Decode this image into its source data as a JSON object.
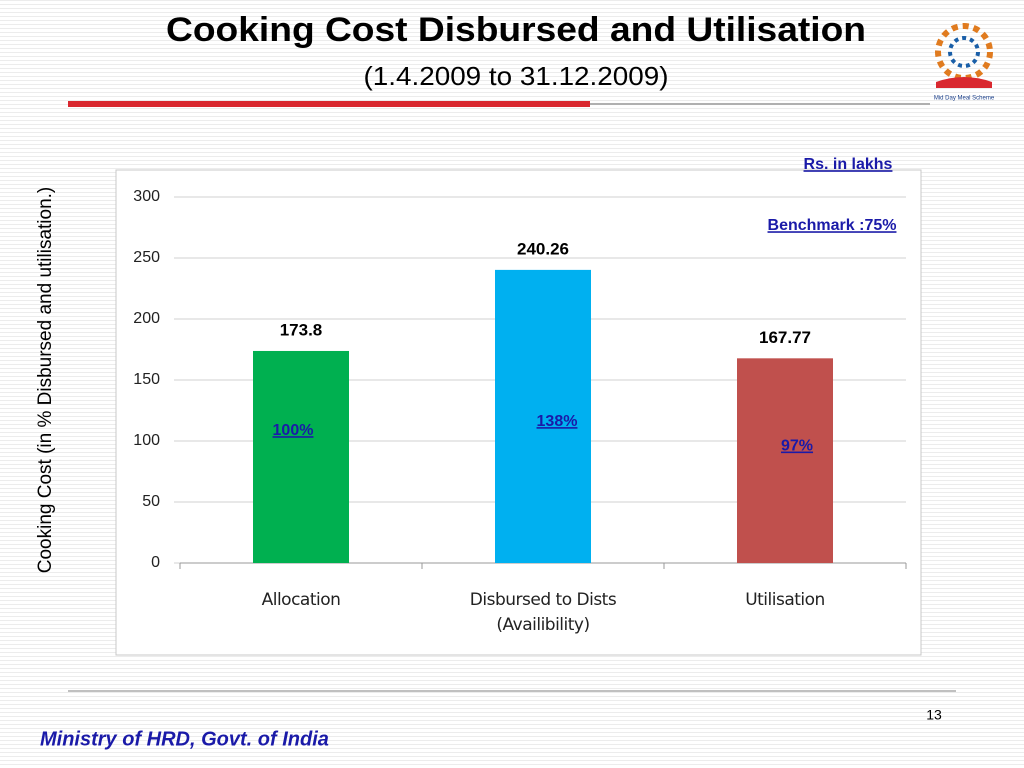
{
  "header": {
    "title": "Cooking Cost Disbursed and Utilisation",
    "subtitle": "(1.4.2009 to 31.12.2009)",
    "logo_caption": "Mid Day Meal Scheme"
  },
  "chart_data": {
    "type": "bar",
    "ylabel": "Cooking Cost (in % Disbursed and utilisation.)",
    "unit_note": "Rs. in lakhs",
    "benchmark": "Benchmark :75%",
    "categories": [
      "Allocation",
      "Disbursed to Dists (Availibility)",
      "Utilisation"
    ],
    "values": [
      173.8,
      240.26,
      167.77
    ],
    "colors": [
      "#00b050",
      "#00b0f0",
      "#c0504d"
    ],
    "annotations": [
      "100%",
      "138%",
      "97%"
    ],
    "ylim": [
      0,
      300
    ],
    "yticks": [
      0,
      50,
      100,
      150,
      200,
      250,
      300
    ],
    "grid": true
  },
  "footer": {
    "page": "13",
    "org": "Ministry of HRD, Govt. of India"
  }
}
